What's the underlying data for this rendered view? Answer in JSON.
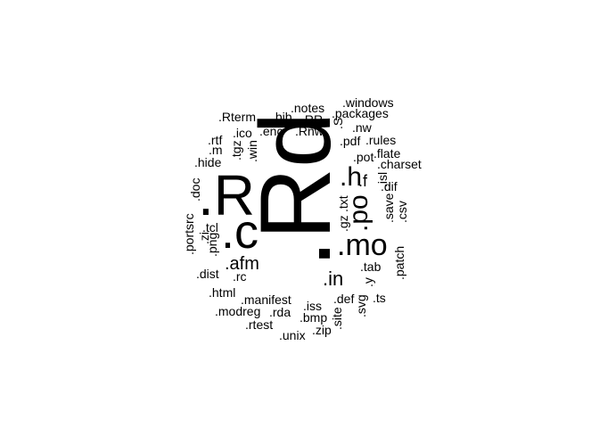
{
  "chart_data": {
    "type": "wordcloud",
    "text_color": "#000000",
    "background": "#ffffff",
    "words": [
      {
        "text": ".Rd",
        "weight": 100
      },
      {
        "text": ".R",
        "weight": 60
      },
      {
        "text": ".c",
        "weight": 52
      },
      {
        "text": ".mo",
        "weight": 40
      },
      {
        "text": ".po",
        "weight": 34
      },
      {
        "text": ".h",
        "weight": 30
      },
      {
        "text": ".in",
        "weight": 22
      },
      {
        "text": ".afm",
        "weight": 22
      },
      {
        "text": ".f",
        "weight": 16
      },
      {
        "text": ".gz",
        "weight": 14
      },
      {
        "text": ".txt",
        "weight": 14
      },
      {
        "text": ".windows",
        "weight": 14
      },
      {
        "text": ".packages",
        "weight": 14
      },
      {
        "text": ".notes",
        "weight": 14
      },
      {
        "text": ".RR",
        "weight": 14
      },
      {
        "text": ".bib",
        "weight": 14
      },
      {
        "text": ".Rterm",
        "weight": 14
      },
      {
        "text": ".S",
        "weight": 14
      },
      {
        "text": ".Rnw",
        "weight": 14
      },
      {
        "text": ".nw",
        "weight": 14
      },
      {
        "text": ".enc",
        "weight": 14
      },
      {
        "text": ".ico",
        "weight": 14
      },
      {
        "text": ".win",
        "weight": 14
      },
      {
        "text": ".rtf",
        "weight": 14
      },
      {
        "text": ".tgz",
        "weight": 14
      },
      {
        "text": ".m",
        "weight": 14
      },
      {
        "text": ".hide",
        "weight": 14
      },
      {
        "text": ".pdf",
        "weight": 14
      },
      {
        "text": ".rules",
        "weight": 14
      },
      {
        "text": ".pot",
        "weight": 14
      },
      {
        "text": ".flate",
        "weight": 14
      },
      {
        "text": ".charset",
        "weight": 14
      },
      {
        "text": ".isl",
        "weight": 14
      },
      {
        "text": ".dif",
        "weight": 14
      },
      {
        "text": ".save",
        "weight": 14
      },
      {
        "text": ".csv",
        "weight": 14
      },
      {
        "text": ".doc",
        "weight": 14
      },
      {
        "text": ".portsrc",
        "weight": 14
      },
      {
        "text": ".tcl",
        "weight": 14
      },
      {
        "text": ".zi",
        "weight": 14
      },
      {
        "text": ".png",
        "weight": 14
      },
      {
        "text": ".dist",
        "weight": 14
      },
      {
        "text": ".rc",
        "weight": 14
      },
      {
        "text": ".tab",
        "weight": 14
      },
      {
        "text": ".y",
        "weight": 14
      },
      {
        "text": ".patch",
        "weight": 14
      },
      {
        "text": ".html",
        "weight": 14
      },
      {
        "text": ".manifest",
        "weight": 14
      },
      {
        "text": ".def",
        "weight": 14
      },
      {
        "text": ".ts",
        "weight": 14
      },
      {
        "text": ".svg",
        "weight": 14
      },
      {
        "text": ".modreg",
        "weight": 14
      },
      {
        "text": ".rda",
        "weight": 14
      },
      {
        "text": ".iss",
        "weight": 14
      },
      {
        "text": ".bmp",
        "weight": 14
      },
      {
        "text": ".site",
        "weight": 14
      },
      {
        "text": ".rtest",
        "weight": 14
      },
      {
        "text": ".zip",
        "weight": 14
      },
      {
        "text": ".unix",
        "weight": 14
      }
    ]
  }
}
